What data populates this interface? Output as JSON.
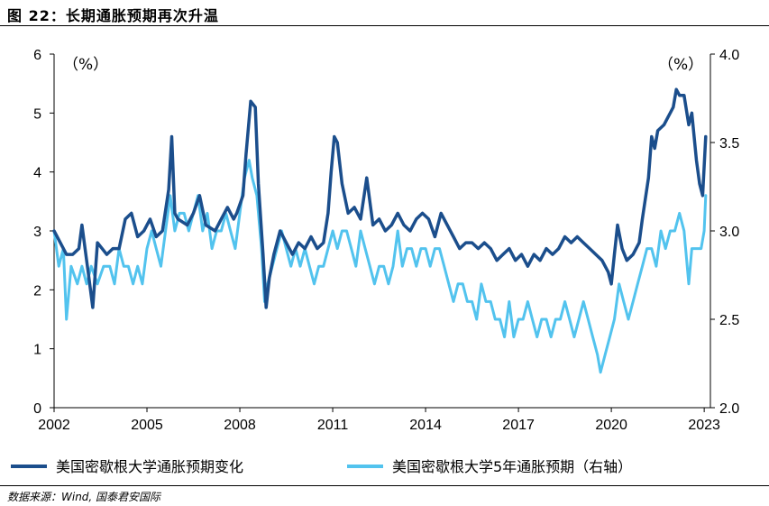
{
  "header": {
    "title": "图 22：长期通胀预期再次升温"
  },
  "footer": {
    "source": "数据来源：Wind, 国泰君安国际"
  },
  "colors": {
    "dark_series": "#1B4E8C",
    "light_series": "#52C3EE"
  },
  "chart_data": {
    "type": "line",
    "left_axis": {
      "unit_label": "（%）",
      "ylim": [
        0,
        6
      ],
      "ticks": [
        "0",
        "1",
        "2",
        "3",
        "4",
        "5",
        "6"
      ]
    },
    "right_axis": {
      "unit_label": "（%）",
      "ylim": [
        2.0,
        4.0
      ],
      "ticks": [
        "2.0",
        "2.5",
        "3.0",
        "3.5",
        "4.0"
      ]
    },
    "x_axis": {
      "xlim": [
        2002,
        2023.2
      ],
      "ticks": [
        "2002",
        "2005",
        "2008",
        "2011",
        "2014",
        "2017",
        "2020",
        "2023"
      ]
    },
    "grid": false,
    "legend_position": "bottom",
    "series": [
      {
        "name": "美国密歇根大学通胀预期变化",
        "axis": "left",
        "color": "#1B4E8C",
        "points": [
          [
            2002.0,
            3.0
          ],
          [
            2002.2,
            2.8
          ],
          [
            2002.4,
            2.6
          ],
          [
            2002.6,
            2.6
          ],
          [
            2002.8,
            2.7
          ],
          [
            2002.9,
            3.1
          ],
          [
            2003.1,
            2.3
          ],
          [
            2003.25,
            1.7
          ],
          [
            2003.4,
            2.8
          ],
          [
            2003.7,
            2.6
          ],
          [
            2003.9,
            2.7
          ],
          [
            2004.1,
            2.7
          ],
          [
            2004.3,
            3.2
          ],
          [
            2004.5,
            3.3
          ],
          [
            2004.7,
            2.9
          ],
          [
            2004.9,
            3.0
          ],
          [
            2005.1,
            3.2
          ],
          [
            2005.3,
            2.9
          ],
          [
            2005.5,
            3.0
          ],
          [
            2005.7,
            3.7
          ],
          [
            2005.8,
            4.6
          ],
          [
            2005.9,
            3.3
          ],
          [
            2006.0,
            3.2
          ],
          [
            2006.3,
            3.1
          ],
          [
            2006.5,
            3.3
          ],
          [
            2006.7,
            3.6
          ],
          [
            2006.9,
            3.1
          ],
          [
            2007.2,
            3.0
          ],
          [
            2007.4,
            3.2
          ],
          [
            2007.6,
            3.4
          ],
          [
            2007.8,
            3.2
          ],
          [
            2007.9,
            3.3
          ],
          [
            2008.1,
            3.6
          ],
          [
            2008.2,
            4.3
          ],
          [
            2008.35,
            5.2
          ],
          [
            2008.5,
            5.1
          ],
          [
            2008.6,
            3.8
          ],
          [
            2008.75,
            2.6
          ],
          [
            2008.85,
            1.7
          ],
          [
            2008.95,
            2.2
          ],
          [
            2009.1,
            2.6
          ],
          [
            2009.3,
            3.0
          ],
          [
            2009.5,
            2.8
          ],
          [
            2009.7,
            2.6
          ],
          [
            2009.9,
            2.8
          ],
          [
            2010.1,
            2.7
          ],
          [
            2010.3,
            2.9
          ],
          [
            2010.5,
            2.7
          ],
          [
            2010.7,
            2.8
          ],
          [
            2010.85,
            3.3
          ],
          [
            2010.95,
            4.0
          ],
          [
            2011.05,
            4.6
          ],
          [
            2011.15,
            4.5
          ],
          [
            2011.3,
            3.8
          ],
          [
            2011.5,
            3.3
          ],
          [
            2011.7,
            3.4
          ],
          [
            2011.9,
            3.2
          ],
          [
            2012.1,
            3.9
          ],
          [
            2012.3,
            3.1
          ],
          [
            2012.5,
            3.2
          ],
          [
            2012.7,
            3.0
          ],
          [
            2012.9,
            3.1
          ],
          [
            2013.1,
            3.3
          ],
          [
            2013.3,
            3.1
          ],
          [
            2013.5,
            3.0
          ],
          [
            2013.7,
            3.2
          ],
          [
            2013.9,
            3.3
          ],
          [
            2014.1,
            3.2
          ],
          [
            2014.3,
            2.9
          ],
          [
            2014.5,
            3.3
          ],
          [
            2014.7,
            3.1
          ],
          [
            2014.9,
            2.9
          ],
          [
            2015.1,
            2.7
          ],
          [
            2015.3,
            2.8
          ],
          [
            2015.5,
            2.8
          ],
          [
            2015.7,
            2.7
          ],
          [
            2015.9,
            2.8
          ],
          [
            2016.1,
            2.7
          ],
          [
            2016.3,
            2.5
          ],
          [
            2016.5,
            2.6
          ],
          [
            2016.7,
            2.7
          ],
          [
            2016.9,
            2.5
          ],
          [
            2017.1,
            2.6
          ],
          [
            2017.3,
            2.4
          ],
          [
            2017.5,
            2.6
          ],
          [
            2017.7,
            2.5
          ],
          [
            2017.9,
            2.7
          ],
          [
            2018.1,
            2.6
          ],
          [
            2018.3,
            2.7
          ],
          [
            2018.5,
            2.9
          ],
          [
            2018.7,
            2.8
          ],
          [
            2018.9,
            2.9
          ],
          [
            2019.1,
            2.8
          ],
          [
            2019.3,
            2.7
          ],
          [
            2019.5,
            2.6
          ],
          [
            2019.7,
            2.5
          ],
          [
            2019.9,
            2.3
          ],
          [
            2020.0,
            2.1
          ],
          [
            2020.1,
            2.6
          ],
          [
            2020.2,
            3.1
          ],
          [
            2020.35,
            2.7
          ],
          [
            2020.5,
            2.5
          ],
          [
            2020.7,
            2.6
          ],
          [
            2020.9,
            2.8
          ],
          [
            2021.0,
            3.2
          ],
          [
            2021.2,
            3.9
          ],
          [
            2021.3,
            4.6
          ],
          [
            2021.4,
            4.4
          ],
          [
            2021.5,
            4.7
          ],
          [
            2021.7,
            4.8
          ],
          [
            2021.8,
            4.9
          ],
          [
            2021.9,
            5.0
          ],
          [
            2022.0,
            5.1
          ],
          [
            2022.1,
            5.4
          ],
          [
            2022.2,
            5.3
          ],
          [
            2022.35,
            5.3
          ],
          [
            2022.5,
            4.8
          ],
          [
            2022.6,
            5.0
          ],
          [
            2022.75,
            4.2
          ],
          [
            2022.85,
            3.8
          ],
          [
            2022.95,
            3.6
          ],
          [
            2023.05,
            4.6
          ]
        ]
      },
      {
        "name": "美国密歇根大学5年通胀预期（右轴）",
        "axis": "right",
        "color": "#52C3EE",
        "points": [
          [
            2002.0,
            3.0
          ],
          [
            2002.15,
            2.8
          ],
          [
            2002.3,
            2.9
          ],
          [
            2002.4,
            2.5
          ],
          [
            2002.55,
            2.8
          ],
          [
            2002.75,
            2.7
          ],
          [
            2002.9,
            2.8
          ],
          [
            2003.05,
            2.7
          ],
          [
            2003.2,
            2.8
          ],
          [
            2003.4,
            2.7
          ],
          [
            2003.6,
            2.8
          ],
          [
            2003.8,
            2.8
          ],
          [
            2003.95,
            2.7
          ],
          [
            2004.1,
            2.9
          ],
          [
            2004.25,
            2.8
          ],
          [
            2004.4,
            2.8
          ],
          [
            2004.55,
            2.7
          ],
          [
            2004.7,
            2.8
          ],
          [
            2004.85,
            2.7
          ],
          [
            2005.0,
            2.9
          ],
          [
            2005.15,
            3.0
          ],
          [
            2005.3,
            2.9
          ],
          [
            2005.45,
            2.8
          ],
          [
            2005.6,
            3.0
          ],
          [
            2005.75,
            3.2
          ],
          [
            2005.9,
            3.0
          ],
          [
            2006.05,
            3.1
          ],
          [
            2006.2,
            3.1
          ],
          [
            2006.35,
            3.0
          ],
          [
            2006.5,
            3.1
          ],
          [
            2006.65,
            3.2
          ],
          [
            2006.8,
            3.0
          ],
          [
            2006.95,
            3.1
          ],
          [
            2007.1,
            2.9
          ],
          [
            2007.25,
            3.0
          ],
          [
            2007.4,
            3.0
          ],
          [
            2007.55,
            3.1
          ],
          [
            2007.7,
            3.0
          ],
          [
            2007.85,
            2.9
          ],
          [
            2008.0,
            3.1
          ],
          [
            2008.15,
            3.3
          ],
          [
            2008.3,
            3.4
          ],
          [
            2008.4,
            3.3
          ],
          [
            2008.55,
            3.2
          ],
          [
            2008.7,
            2.9
          ],
          [
            2008.8,
            2.6
          ],
          [
            2008.9,
            2.7
          ],
          [
            2009.05,
            2.8
          ],
          [
            2009.2,
            2.9
          ],
          [
            2009.35,
            3.0
          ],
          [
            2009.5,
            2.9
          ],
          [
            2009.65,
            2.8
          ],
          [
            2009.8,
            2.9
          ],
          [
            2009.95,
            2.8
          ],
          [
            2010.1,
            2.9
          ],
          [
            2010.25,
            2.8
          ],
          [
            2010.4,
            2.7
          ],
          [
            2010.55,
            2.8
          ],
          [
            2010.7,
            2.8
          ],
          [
            2010.85,
            2.9
          ],
          [
            2011.0,
            3.0
          ],
          [
            2011.15,
            2.9
          ],
          [
            2011.3,
            3.0
          ],
          [
            2011.45,
            3.0
          ],
          [
            2011.6,
            2.9
          ],
          [
            2011.75,
            2.8
          ],
          [
            2011.9,
            3.0
          ],
          [
            2012.05,
            2.9
          ],
          [
            2012.2,
            2.8
          ],
          [
            2012.35,
            2.7
          ],
          [
            2012.5,
            2.8
          ],
          [
            2012.65,
            2.8
          ],
          [
            2012.8,
            2.7
          ],
          [
            2012.95,
            2.8
          ],
          [
            2013.1,
            3.0
          ],
          [
            2013.25,
            2.8
          ],
          [
            2013.4,
            2.9
          ],
          [
            2013.55,
            2.9
          ],
          [
            2013.7,
            2.8
          ],
          [
            2013.85,
            2.9
          ],
          [
            2014.0,
            2.9
          ],
          [
            2014.15,
            2.8
          ],
          [
            2014.3,
            2.9
          ],
          [
            2014.45,
            2.9
          ],
          [
            2014.6,
            2.8
          ],
          [
            2014.75,
            2.7
          ],
          [
            2014.9,
            2.6
          ],
          [
            2015.05,
            2.7
          ],
          [
            2015.2,
            2.7
          ],
          [
            2015.35,
            2.6
          ],
          [
            2015.5,
            2.6
          ],
          [
            2015.65,
            2.5
          ],
          [
            2015.8,
            2.7
          ],
          [
            2015.95,
            2.6
          ],
          [
            2016.1,
            2.6
          ],
          [
            2016.25,
            2.5
          ],
          [
            2016.4,
            2.5
          ],
          [
            2016.55,
            2.4
          ],
          [
            2016.7,
            2.6
          ],
          [
            2016.85,
            2.4
          ],
          [
            2017.0,
            2.5
          ],
          [
            2017.15,
            2.5
          ],
          [
            2017.3,
            2.6
          ],
          [
            2017.45,
            2.5
          ],
          [
            2017.6,
            2.4
          ],
          [
            2017.75,
            2.5
          ],
          [
            2017.9,
            2.5
          ],
          [
            2018.05,
            2.4
          ],
          [
            2018.2,
            2.5
          ],
          [
            2018.35,
            2.5
          ],
          [
            2018.5,
            2.6
          ],
          [
            2018.65,
            2.5
          ],
          [
            2018.8,
            2.4
          ],
          [
            2018.95,
            2.5
          ],
          [
            2019.1,
            2.6
          ],
          [
            2019.25,
            2.5
          ],
          [
            2019.4,
            2.4
          ],
          [
            2019.55,
            2.3
          ],
          [
            2019.65,
            2.2
          ],
          [
            2019.8,
            2.3
          ],
          [
            2019.95,
            2.4
          ],
          [
            2020.1,
            2.5
          ],
          [
            2020.25,
            2.7
          ],
          [
            2020.4,
            2.6
          ],
          [
            2020.55,
            2.5
          ],
          [
            2020.7,
            2.6
          ],
          [
            2020.85,
            2.7
          ],
          [
            2021.0,
            2.8
          ],
          [
            2021.15,
            2.9
          ],
          [
            2021.3,
            2.9
          ],
          [
            2021.45,
            2.8
          ],
          [
            2021.6,
            3.0
          ],
          [
            2021.75,
            2.9
          ],
          [
            2021.9,
            3.0
          ],
          [
            2022.05,
            3.0
          ],
          [
            2022.2,
            3.1
          ],
          [
            2022.35,
            3.0
          ],
          [
            2022.5,
            2.7
          ],
          [
            2022.6,
            2.9
          ],
          [
            2022.75,
            2.9
          ],
          [
            2022.9,
            2.9
          ],
          [
            2023.0,
            3.0
          ],
          [
            2023.05,
            3.2
          ]
        ]
      }
    ]
  }
}
